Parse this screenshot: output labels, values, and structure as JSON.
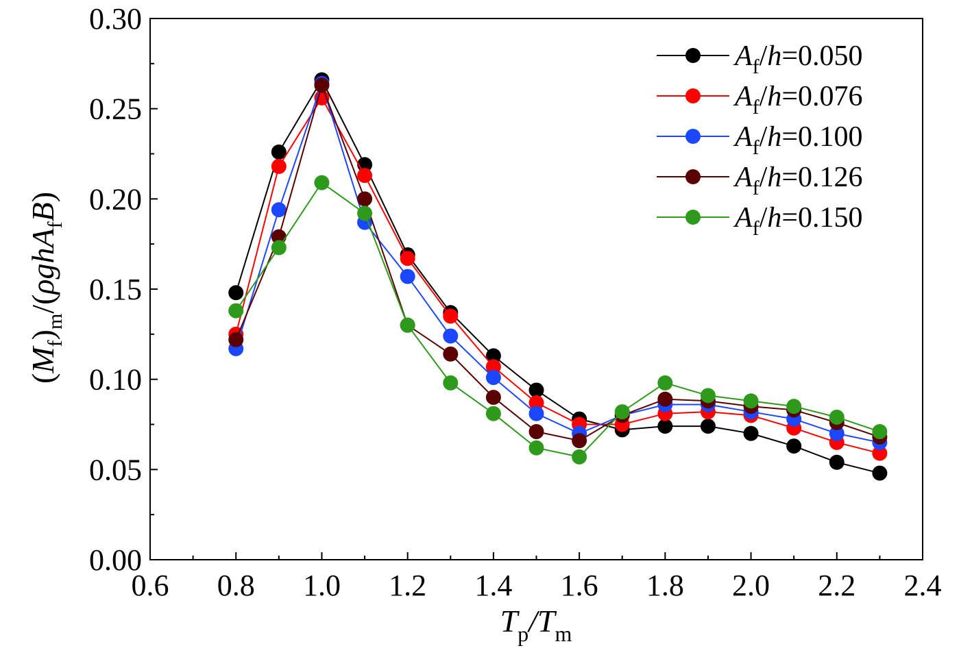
{
  "chart_data": {
    "type": "line",
    "title": "",
    "xlabel": "Tp/Tm",
    "ylabel": "(Mf)m/(ρghAfB)",
    "xlim": [
      0.6,
      2.4
    ],
    "ylim": [
      0.0,
      0.3
    ],
    "xticks": [
      "0.6",
      "0.8",
      "1.0",
      "1.2",
      "1.4",
      "1.6",
      "1.8",
      "2.0",
      "2.2",
      "2.4"
    ],
    "yticks": [
      "0.00",
      "0.05",
      "0.10",
      "0.15",
      "0.20",
      "0.25",
      "0.30"
    ],
    "grid": false,
    "legend_position": "top-right",
    "x": [
      0.8,
      0.9,
      1.0,
      1.1,
      1.2,
      1.3,
      1.4,
      1.5,
      1.6,
      1.7,
      1.8,
      1.9,
      2.0,
      2.1,
      2.2,
      2.3
    ],
    "series": [
      {
        "name": "Af/h=0.050",
        "color": "#000000",
        "values": [
          0.148,
          0.226,
          0.266,
          0.219,
          0.169,
          0.137,
          0.113,
          0.094,
          0.078,
          0.072,
          0.074,
          0.074,
          0.07,
          0.063,
          0.054,
          0.048
        ]
      },
      {
        "name": "Af/h=0.076",
        "color": "#ff0000",
        "values": [
          0.125,
          0.218,
          0.256,
          0.213,
          0.167,
          0.135,
          0.107,
          0.087,
          0.075,
          0.075,
          0.081,
          0.082,
          0.08,
          0.073,
          0.065,
          0.059
        ]
      },
      {
        "name": "Af/h=0.100",
        "color": "#1a47ff",
        "values": [
          0.117,
          0.194,
          0.264,
          0.187,
          0.157,
          0.124,
          0.101,
          0.081,
          0.07,
          0.08,
          0.086,
          0.086,
          0.082,
          0.078,
          0.07,
          0.065
        ]
      },
      {
        "name": "Af/h=0.126",
        "color": "#5a0000",
        "values": [
          0.122,
          0.179,
          0.263,
          0.2,
          0.13,
          0.114,
          0.09,
          0.071,
          0.066,
          0.08,
          0.089,
          0.088,
          0.085,
          0.083,
          0.076,
          0.068
        ]
      },
      {
        "name": "Af/h=0.150",
        "color": "#2e9a1c",
        "values": [
          0.138,
          0.173,
          0.209,
          0.192,
          0.13,
          0.098,
          0.081,
          0.062,
          0.057,
          0.082,
          0.098,
          0.091,
          0.088,
          0.085,
          0.079,
          0.071
        ]
      }
    ]
  }
}
